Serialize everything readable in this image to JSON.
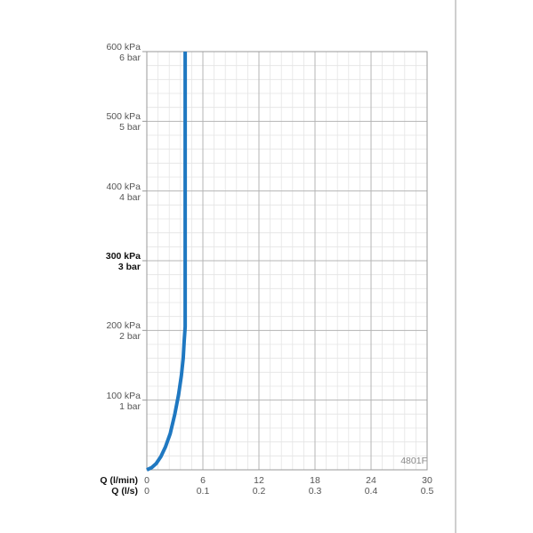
{
  "chart_data": {
    "type": "line",
    "code_label": "4801F",
    "y_ticks": [
      {
        "kpa": "600 kPa",
        "bar": "6 bar",
        "value": 600,
        "bold": false
      },
      {
        "kpa": "500 kPa",
        "bar": "5 bar",
        "value": 500,
        "bold": false
      },
      {
        "kpa": "400 kPa",
        "bar": "4 bar",
        "value": 400,
        "bold": false
      },
      {
        "kpa": "300 kPa",
        "bar": "3 bar",
        "value": 300,
        "bold": true
      },
      {
        "kpa": "200 kPa",
        "bar": "2 bar",
        "value": 200,
        "bold": false
      },
      {
        "kpa": "100 kPa",
        "bar": "1 bar",
        "value": 100,
        "bold": false
      }
    ],
    "x_axis_title_lmin": "Q (l/min)",
    "x_axis_title_ls": "Q (l/s)",
    "x_ticks_lmin": [
      "0",
      "6",
      "12",
      "18",
      "24",
      "30"
    ],
    "x_ticks_ls": [
      "0",
      "0.1",
      "0.2",
      "0.3",
      "0.4",
      "0.5"
    ],
    "x_tick_values": [
      0,
      6,
      12,
      18,
      24,
      30
    ],
    "xlim": [
      0,
      30
    ],
    "ylim": [
      0,
      600
    ],
    "grid": true,
    "series": [
      {
        "color": "#1f78c1",
        "x": [
          0,
          0.5,
          1.0,
          1.5,
          2.0,
          2.5,
          3.0,
          3.4,
          3.7,
          3.9,
          4.0,
          4.1,
          4.1,
          4.1
        ],
        "y": [
          0,
          3,
          9,
          19,
          33,
          52,
          80,
          108,
          135,
          160,
          185,
          205,
          300,
          600
        ]
      }
    ]
  }
}
